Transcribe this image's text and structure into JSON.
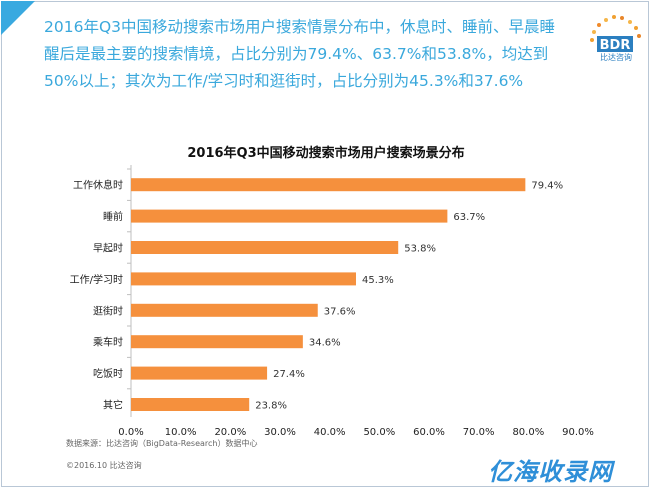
{
  "headline": "2016年Q3中国移动搜索市场用户搜索情景分布中，休息时、睡前、早晨睡醒后是最主要的搜索情境，占比分别为79.4%、63.7%和53.8%，均达到50%以上；其次为工作/学习时和逛街时，占比分别为45.3%和37.6%",
  "logo": {
    "text": "BDR",
    "subtitle": "比达咨询"
  },
  "source": "数据来源：比达咨询（BigData-Research）数据中心",
  "copyright": "©2016.10 比达咨询",
  "watermark": "亿海收录网",
  "colors": {
    "bar": "#f5903d",
    "headline": "#3aa8dc",
    "corner": "#39a9e0",
    "logo": "#2b7fc0",
    "watermark": "#2f8fd8"
  },
  "chart_data": {
    "type": "bar",
    "orientation": "horizontal",
    "title": "2016年Q3中国移动搜索市场用户搜索场景分布",
    "categories": [
      "工作休息时",
      "睡前",
      "早起时",
      "工作/学习时",
      "逛街时",
      "乘车时",
      "吃饭时",
      "其它"
    ],
    "values": [
      79.4,
      63.7,
      53.8,
      45.3,
      37.6,
      34.6,
      27.4,
      23.8
    ],
    "value_labels": [
      "79.4%",
      "63.7%",
      "53.8%",
      "45.3%",
      "37.6%",
      "34.6%",
      "27.4%",
      "23.8%"
    ],
    "xlim": [
      0,
      90
    ],
    "x_ticks": [
      "0.0%",
      "10.0%",
      "20.0%",
      "30.0%",
      "40.0%",
      "50.0%",
      "60.0%",
      "70.0%",
      "80.0%",
      "90.0%"
    ],
    "grid": false,
    "legend": "none"
  }
}
